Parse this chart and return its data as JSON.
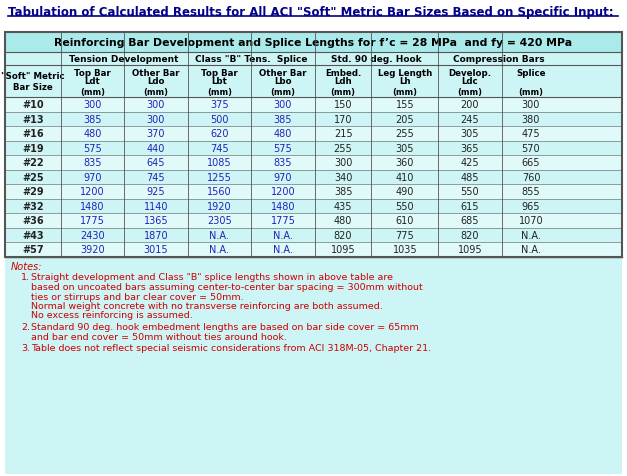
{
  "title": "Tabulation of Calculated Results for All ACI \"Soft\" Metric Bar Sizes Based on Specific Input:",
  "subtitle": "Reinforcing Bar Development and Splice Lengths for f’c = 28 MPa  and fy = 420 MPa",
  "title_bg": "#ffffff",
  "table_bg": "#cef5f5",
  "subtitle_bg": "#aaeaea",
  "group_bg": "#cef5f5",
  "col_header_bg": "#cef5f5",
  "row_even_bg": "#e0fafa",
  "row_odd_bg": "#cef5f5",
  "notes_bg": "#cef5f5",
  "title_color": "#00008b",
  "subtitle_color": "#000000",
  "header_color": "#000000",
  "data_color_blue": "#2222bb",
  "data_color_black": "#222222",
  "border_color": "#555555",
  "col_groups": [
    {
      "label": "Tension Development",
      "span": 2
    },
    {
      "label": "Class \"B\" Tens.  Splice",
      "span": 2
    },
    {
      "label": "Std. 90 deg. Hook",
      "span": 2
    },
    {
      "label": "Compression Bars",
      "span": 2
    }
  ],
  "col_headers_line1": [
    "Top Bar",
    "Other Bar",
    "Top Bar",
    "Other Bar",
    "Embed.",
    "Leg Length",
    "Develop.",
    "Splice"
  ],
  "col_headers_line2": [
    "Ldt",
    "Ldo",
    "Lbt",
    "Lbo",
    "Ldh",
    "Lh",
    "Ldc",
    ""
  ],
  "col_headers_line3": [
    "(mm)",
    "(mm)",
    "(mm)",
    "(mm)",
    "(mm)",
    "(mm)",
    "(mm)",
    "(mm)"
  ],
  "row_header_lines": [
    "\"Soft\" Metric",
    "Bar Size"
  ],
  "bar_sizes": [
    "#10",
    "#13",
    "#16",
    "#19",
    "#22",
    "#25",
    "#29",
    "#32",
    "#36",
    "#43",
    "#57"
  ],
  "table_data": [
    [
      "300",
      "300",
      "375",
      "300",
      "150",
      "155",
      "200",
      "300"
    ],
    [
      "385",
      "300",
      "500",
      "385",
      "170",
      "205",
      "245",
      "380"
    ],
    [
      "480",
      "370",
      "620",
      "480",
      "215",
      "255",
      "305",
      "475"
    ],
    [
      "575",
      "440",
      "745",
      "575",
      "255",
      "305",
      "365",
      "570"
    ],
    [
      "835",
      "645",
      "1085",
      "835",
      "300",
      "360",
      "425",
      "665"
    ],
    [
      "970",
      "745",
      "1255",
      "970",
      "340",
      "410",
      "485",
      "760"
    ],
    [
      "1200",
      "925",
      "1560",
      "1200",
      "385",
      "490",
      "550",
      "855"
    ],
    [
      "1480",
      "1140",
      "1920",
      "1480",
      "435",
      "550",
      "615",
      "965"
    ],
    [
      "1775",
      "1365",
      "2305",
      "1775",
      "480",
      "610",
      "685",
      "1070"
    ],
    [
      "2430",
      "1870",
      "N.A.",
      "N.A.",
      "820",
      "775",
      "820",
      "N.A."
    ],
    [
      "3920",
      "3015",
      "N.A.",
      "N.A.",
      "1095",
      "1035",
      "1095",
      "N.A."
    ]
  ],
  "notes_label": "Notes:",
  "notes": [
    [
      "Straight development and Class \"B\" splice lengths shown in above table are",
      "based on uncoated bars assuming center-to-center bar spacing = 300mm without",
      "ties or stirrups and bar clear cover = 50mm.",
      "Normal weight concrete with no transverse reinforcing are both assumed.",
      "No excess reinforcing is assumed."
    ],
    [
      "Standard 90 deg. hook embedment lengths are based on bar side cover = 65mm",
      "and bar end cover = 50mm without ties around hook."
    ],
    [
      "Table does not reflect special seismic considerations from ACI 318M-05, Chapter 21."
    ]
  ],
  "note_color": "#cc0000",
  "figsize": [
    6.27,
    4.77
  ],
  "dpi": 100
}
